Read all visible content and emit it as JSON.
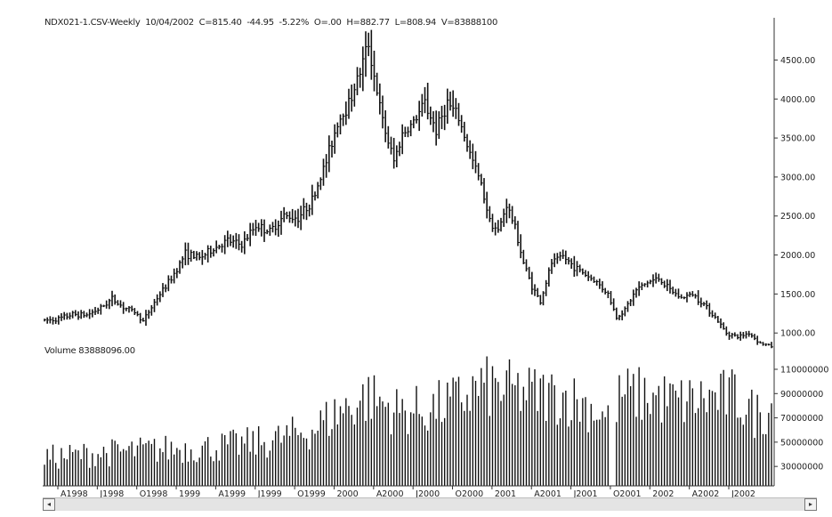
{
  "header": {
    "symbol": "NDX021-1.CSV-Weekly",
    "date": "10/04/2002",
    "close": "C=815.40",
    "change": "-44.95",
    "pct": "-5.22%",
    "open": "O=.00",
    "high": "H=882.77",
    "low": "L=808.94",
    "volume": "V=83888100"
  },
  "volume_header": "Volume  83888096.00",
  "scroll": {
    "left_arrow": "◂",
    "right_arrow": "▸"
  },
  "colors": {
    "bars": "#111111",
    "axis": "#333333",
    "background": "#ffffff"
  },
  "chart_data": [
    {
      "type": "ohlc",
      "frequency": "weekly",
      "y_tick_labels": [
        "1000.00",
        "1500.00",
        "2000.00",
        "2500.00",
        "3000.00",
        "3500.00",
        "4000.00",
        "4500.00"
      ],
      "y_ticks": [
        1000,
        1500,
        2000,
        2500,
        3000,
        3500,
        4000,
        4500
      ],
      "ylim": [
        820,
        4870
      ],
      "x_tick_labels": [
        "A1998",
        "J1998",
        "O1998",
        "1999",
        "A1999",
        "J1999",
        "O1999",
        "2000",
        "A2000",
        "J2000",
        "O2000",
        "2001",
        "A2001",
        "J2001",
        "O2001",
        "2002",
        "A2002",
        "J2002"
      ],
      "close_keypoints": [
        {
          "week": 0,
          "close": 1160
        },
        {
          "week": 5,
          "close": 1180
        },
        {
          "week": 10,
          "close": 1240
        },
        {
          "week": 15,
          "close": 1230
        },
        {
          "week": 20,
          "close": 1320
        },
        {
          "week": 24,
          "close": 1440
        },
        {
          "week": 28,
          "close": 1330
        },
        {
          "week": 32,
          "close": 1270
        },
        {
          "week": 35,
          "close": 1150
        },
        {
          "week": 40,
          "close": 1450
        },
        {
          "week": 45,
          "close": 1700
        },
        {
          "week": 50,
          "close": 2020
        },
        {
          "week": 55,
          "close": 1960
        },
        {
          "week": 60,
          "close": 2080
        },
        {
          "week": 65,
          "close": 2180
        },
        {
          "week": 70,
          "close": 2130
        },
        {
          "week": 75,
          "close": 2380
        },
        {
          "week": 80,
          "close": 2300
        },
        {
          "week": 85,
          "close": 2500
        },
        {
          "week": 90,
          "close": 2480
        },
        {
          "week": 95,
          "close": 2700
        },
        {
          "week": 100,
          "close": 3200
        },
        {
          "week": 104,
          "close": 3700
        },
        {
          "week": 108,
          "close": 3950
        },
        {
          "week": 112,
          "close": 4350
        },
        {
          "week": 115,
          "close": 4720
        },
        {
          "week": 117,
          "close": 4300
        },
        {
          "week": 120,
          "close": 3700
        },
        {
          "week": 124,
          "close": 3200
        },
        {
          "week": 127,
          "close": 3550
        },
        {
          "week": 131,
          "close": 3700
        },
        {
          "week": 135,
          "close": 3950
        },
        {
          "week": 139,
          "close": 3600
        },
        {
          "week": 143,
          "close": 3950
        },
        {
          "week": 147,
          "close": 3750
        },
        {
          "week": 151,
          "close": 3300
        },
        {
          "week": 155,
          "close": 2900
        },
        {
          "week": 158,
          "close": 2450
        },
        {
          "week": 161,
          "close": 2300
        },
        {
          "week": 164,
          "close": 2650
        },
        {
          "week": 167,
          "close": 2350
        },
        {
          "week": 170,
          "close": 1900
        },
        {
          "week": 173,
          "close": 1600
        },
        {
          "week": 176,
          "close": 1400
        },
        {
          "week": 180,
          "close": 1900
        },
        {
          "week": 184,
          "close": 1980
        },
        {
          "week": 188,
          "close": 1850
        },
        {
          "week": 192,
          "close": 1750
        },
        {
          "week": 196,
          "close": 1650
        },
        {
          "week": 200,
          "close": 1500
        },
        {
          "week": 203,
          "close": 1200
        },
        {
          "week": 206,
          "close": 1300
        },
        {
          "week": 210,
          "close": 1550
        },
        {
          "week": 214,
          "close": 1650
        },
        {
          "week": 218,
          "close": 1700
        },
        {
          "week": 222,
          "close": 1550
        },
        {
          "week": 226,
          "close": 1450
        },
        {
          "week": 230,
          "close": 1500
        },
        {
          "week": 234,
          "close": 1370
        },
        {
          "week": 238,
          "close": 1200
        },
        {
          "week": 242,
          "close": 1000
        },
        {
          "week": 246,
          "close": 950
        },
        {
          "week": 250,
          "close": 1000
        },
        {
          "week": 254,
          "close": 870
        },
        {
          "week": 258,
          "close": 830
        }
      ]
    },
    {
      "type": "bar",
      "name": "Volume",
      "y_tick_labels": [
        "30000000",
        "50000000",
        "70000000",
        "90000000",
        "110000000"
      ],
      "y_ticks": [
        30000000,
        50000000,
        70000000,
        90000000,
        110000000
      ],
      "ylim": [
        14000000,
        121000000
      ],
      "volume_keypoints": [
        {
          "week": 0,
          "volume": 38000000
        },
        {
          "week": 20,
          "volume": 42000000
        },
        {
          "week": 40,
          "volume": 45000000
        },
        {
          "week": 60,
          "volume": 47000000
        },
        {
          "week": 80,
          "volume": 52000000
        },
        {
          "week": 95,
          "volume": 62000000
        },
        {
          "week": 105,
          "volume": 78000000
        },
        {
          "week": 115,
          "volume": 90000000
        },
        {
          "week": 125,
          "volume": 78000000
        },
        {
          "week": 135,
          "volume": 78000000
        },
        {
          "week": 145,
          "volume": 85000000
        },
        {
          "week": 155,
          "volume": 98000000
        },
        {
          "week": 165,
          "volume": 95000000
        },
        {
          "week": 175,
          "volume": 92000000
        },
        {
          "week": 185,
          "volume": 90000000
        },
        {
          "week": 195,
          "volume": 80000000
        },
        {
          "week": 200,
          "volume": 70000000
        },
        {
          "week": 205,
          "volume": 92000000
        },
        {
          "week": 215,
          "volume": 90000000
        },
        {
          "week": 225,
          "volume": 85000000
        },
        {
          "week": 235,
          "volume": 88000000
        },
        {
          "week": 245,
          "volume": 90000000
        },
        {
          "week": 252,
          "volume": 75000000
        },
        {
          "week": 258,
          "volume": 80000000
        }
      ],
      "gap_weeks": [
        201,
        202
      ]
    }
  ]
}
